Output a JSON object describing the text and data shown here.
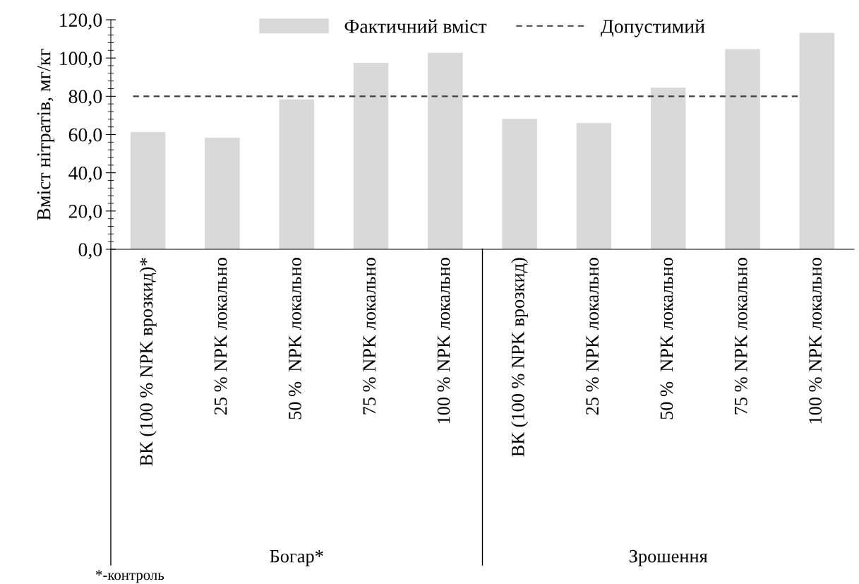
{
  "chart_data": {
    "type": "bar",
    "ylabel": "Вміст нітратів, мг/кг",
    "categories": [
      "ВК (100 % NPK врозкид)*",
      "25 % NPK локально",
      "50 %  NPK локально",
      "75 % NPK локально",
      "100 % NPK локально",
      "ВК (100 % NPK врозкид)",
      "25 % NPK локально",
      "50 %  NPK локально",
      "75 % NPK локально",
      "100 % NPK локально"
    ],
    "series": [
      {
        "name": "Фактичний вміст",
        "color": "#d9d9d9",
        "values": [
          61.3,
          58.3,
          78.4,
          97.5,
          102.7,
          68.2,
          66.0,
          84.6,
          104.7,
          113.2
        ]
      }
    ],
    "ref_lines": [
      {
        "axis": "y",
        "value": 80,
        "label": "Допустимий",
        "color": "#404040",
        "line_style": "dashed"
      }
    ],
    "ylim": [
      0,
      120
    ],
    "yticks": [
      {
        "value": 0,
        "label": "0,0"
      },
      {
        "value": 20,
        "label": "20,0"
      },
      {
        "value": 40,
        "label": "40,0"
      },
      {
        "value": 60,
        "label": "60,0"
      },
      {
        "value": 80,
        "label": "80,0"
      },
      {
        "value": 100,
        "label": "100,0"
      },
      {
        "value": 120,
        "label": "120,0"
      }
    ],
    "annotations": [
      "Богар*",
      "Зрошення",
      "*-контроль"
    ],
    "legend": "top",
    "grid": false
  }
}
